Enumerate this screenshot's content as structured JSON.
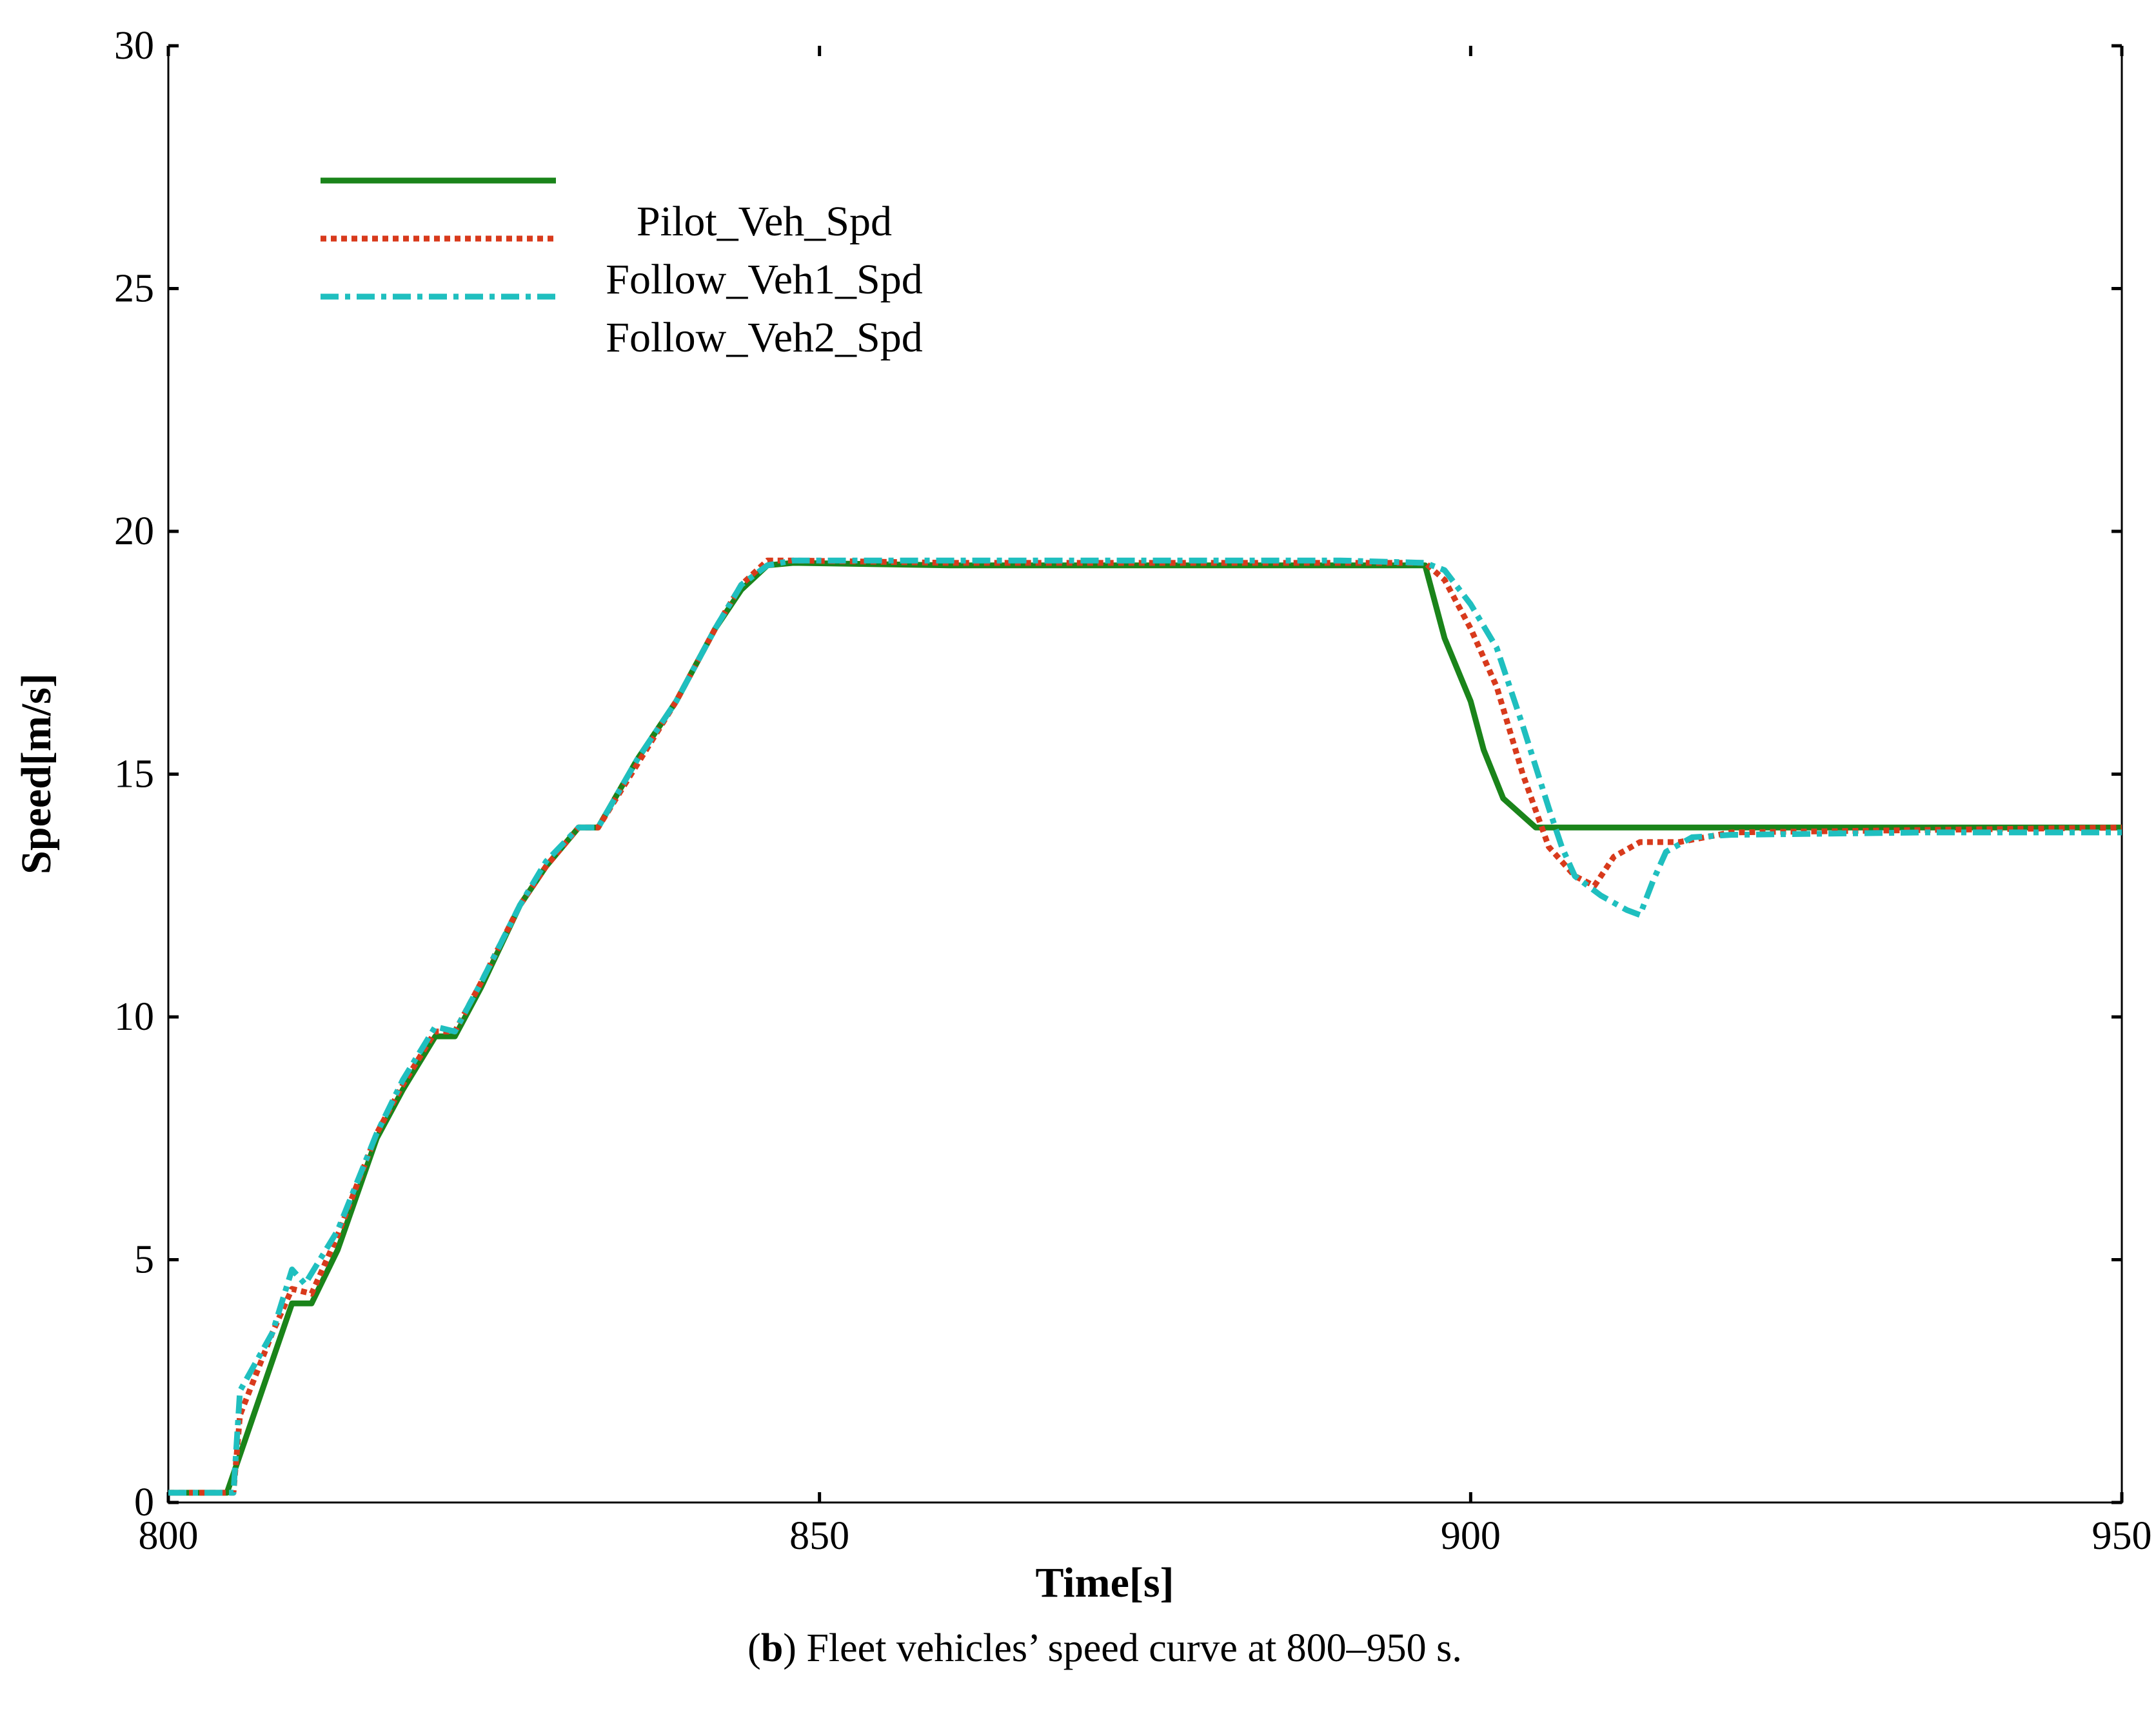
{
  "chart_data": {
    "type": "line",
    "xlabel": "Time[s]",
    "ylabel": "Speed[m/s]",
    "caption": {
      "open": "(",
      "label": "b",
      "text": ") Fleet vehicles’ speed curve at 800–950 s."
    },
    "xlim": [
      800,
      950
    ],
    "xticks": [
      800,
      850,
      900,
      950
    ],
    "ylim": [
      0,
      30
    ],
    "yticks": [
      0,
      5,
      10,
      15,
      20,
      25,
      30
    ],
    "grid": false,
    "legend": "upper left",
    "series": [
      {
        "name": "Pilot_Veh_Spd",
        "color": "#1a841a",
        "style": "solid",
        "x": [
          800,
          804.5,
          809.5,
          811,
          813,
          816,
          818,
          820.5,
          822,
          824,
          827,
          829,
          831.5,
          833,
          836,
          839,
          842,
          844,
          846,
          848,
          860,
          870,
          880,
          890,
          896.5,
          898,
          900,
          901,
          902.5,
          905,
          920,
          935,
          950
        ],
        "values": [
          0.2,
          0.2,
          4.1,
          4.1,
          5.2,
          7.5,
          8.5,
          9.6,
          9.6,
          10.6,
          12.3,
          13.1,
          13.9,
          13.9,
          15.3,
          16.5,
          18.0,
          18.8,
          19.3,
          19.35,
          19.3,
          19.3,
          19.3,
          19.3,
          19.3,
          17.8,
          16.5,
          15.5,
          14.5,
          13.9,
          13.9,
          13.9,
          13.9
        ]
      },
      {
        "name": "Follow_Veh1_Spd",
        "color": "#d83a1c",
        "style": "dotted",
        "x": [
          800,
          805,
          805.5,
          808,
          809.5,
          811,
          813,
          816,
          818,
          820.5,
          822,
          824,
          827,
          829,
          831.5,
          833,
          836,
          839,
          842,
          844,
          846,
          848,
          860,
          870,
          880,
          890,
          896.5,
          898,
          900,
          902,
          904,
          906,
          908,
          909.5,
          911,
          913,
          916,
          920,
          935,
          950
        ],
        "values": [
          0.2,
          0.2,
          1.8,
          3.5,
          4.4,
          4.3,
          5.5,
          7.6,
          8.6,
          9.7,
          9.7,
          10.7,
          12.3,
          13.1,
          13.9,
          13.9,
          15.2,
          16.5,
          18.0,
          18.9,
          19.4,
          19.4,
          19.35,
          19.35,
          19.35,
          19.35,
          19.35,
          19.0,
          18.0,
          16.8,
          15.0,
          13.5,
          12.9,
          12.7,
          13.3,
          13.6,
          13.6,
          13.8,
          13.85,
          13.9
        ]
      },
      {
        "name": "Follow_Veh2_Spd",
        "color": "#1fbfbf",
        "style": "dashdot",
        "x": [
          800,
          805,
          805.5,
          808,
          809.5,
          810.5,
          813,
          816,
          818,
          820.5,
          822,
          824,
          827,
          829,
          831.5,
          833,
          836,
          839,
          842,
          844,
          846,
          848,
          860,
          870,
          880,
          890,
          896.5,
          898,
          900,
          902,
          904,
          906,
          907,
          908,
          910,
          912,
          913,
          914,
          915,
          917,
          920,
          935,
          950
        ],
        "values": [
          0.2,
          0.2,
          2.3,
          3.5,
          4.8,
          4.5,
          5.6,
          7.6,
          8.7,
          9.8,
          9.7,
          10.7,
          12.3,
          13.2,
          13.9,
          13.9,
          15.3,
          16.5,
          18.0,
          18.9,
          19.3,
          19.4,
          19.4,
          19.4,
          19.4,
          19.4,
          19.35,
          19.2,
          18.5,
          17.6,
          16.0,
          14.3,
          13.5,
          12.9,
          12.5,
          12.2,
          12.1,
          12.8,
          13.4,
          13.7,
          13.75,
          13.8,
          13.8
        ]
      }
    ]
  }
}
